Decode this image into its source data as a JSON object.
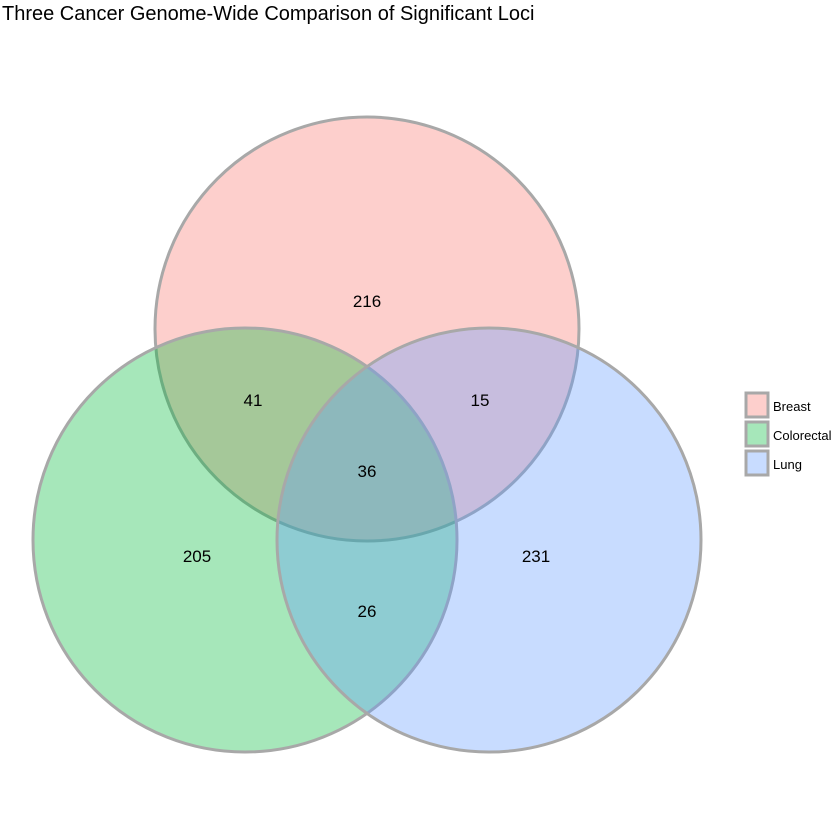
{
  "title": "Three Cancer Genome-Wide Comparison of Significant Loci",
  "sets": [
    {
      "name": "Breast",
      "color": "#F8766D"
    },
    {
      "name": "Colorectal",
      "color": "#00BA38"
    },
    {
      "name": "Lung",
      "color": "#619CFF"
    }
  ],
  "regions": {
    "breast_only": "216",
    "colorectal_only": "205",
    "lung_only": "231",
    "breast_colorectal": "41",
    "breast_lung": "15",
    "colorectal_lung": "26",
    "all_three": "36"
  }
}
